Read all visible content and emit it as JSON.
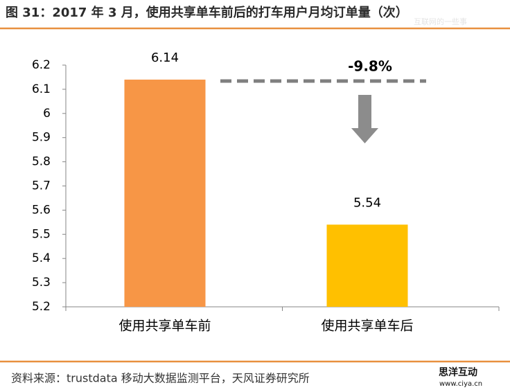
{
  "chart_data": {
    "type": "bar",
    "title": "图 31：2017 年 3 月，使用共享单车前后的打车用户月均订单量（次）",
    "categories": [
      "使用共享单车前",
      "使用共享单车后"
    ],
    "values": [
      6.14,
      5.54
    ],
    "colors": [
      "#f79646",
      "#ffc000"
    ],
    "ylim": [
      5.2,
      6.2
    ],
    "yticks": [
      5.2,
      5.3,
      5.4,
      5.5,
      5.6,
      5.7,
      5.8,
      5.9,
      6,
      6.1,
      6.2
    ],
    "annotation": "-9.8%",
    "source": "资料来源：trustdata 移动大数据监测平台，天风证券研究所",
    "watermarks": [
      "互联网的一些事",
      "思洋互动",
      "www.ciya.cn"
    ]
  }
}
